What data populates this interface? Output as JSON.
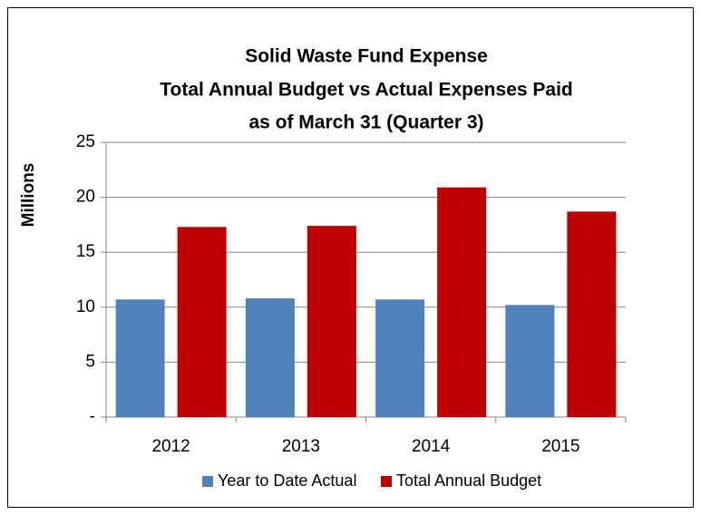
{
  "chart_data": {
    "type": "bar",
    "title": [
      "Solid Waste Fund Expense",
      "Total Annual Budget vs Actual Expenses Paid",
      "as of March 31 (Quarter 3)"
    ],
    "y_label": "Millions",
    "categories": [
      "2012",
      "2013",
      "2014",
      "2015"
    ],
    "series": [
      {
        "name": "Year to Date Actual",
        "color": "#4f81bd",
        "values": [
          10.7,
          10.8,
          10.7,
          10.2
        ]
      },
      {
        "name": "Total Annual Budget",
        "color": "#c00000",
        "values": [
          17.3,
          17.4,
          20.9,
          18.7
        ]
      }
    ],
    "ylim": [
      0,
      25
    ],
    "yticks": [
      {
        "value": 0,
        "label": "-"
      },
      5,
      10,
      15,
      20,
      25
    ],
    "grid": true,
    "legend": "bottom"
  }
}
